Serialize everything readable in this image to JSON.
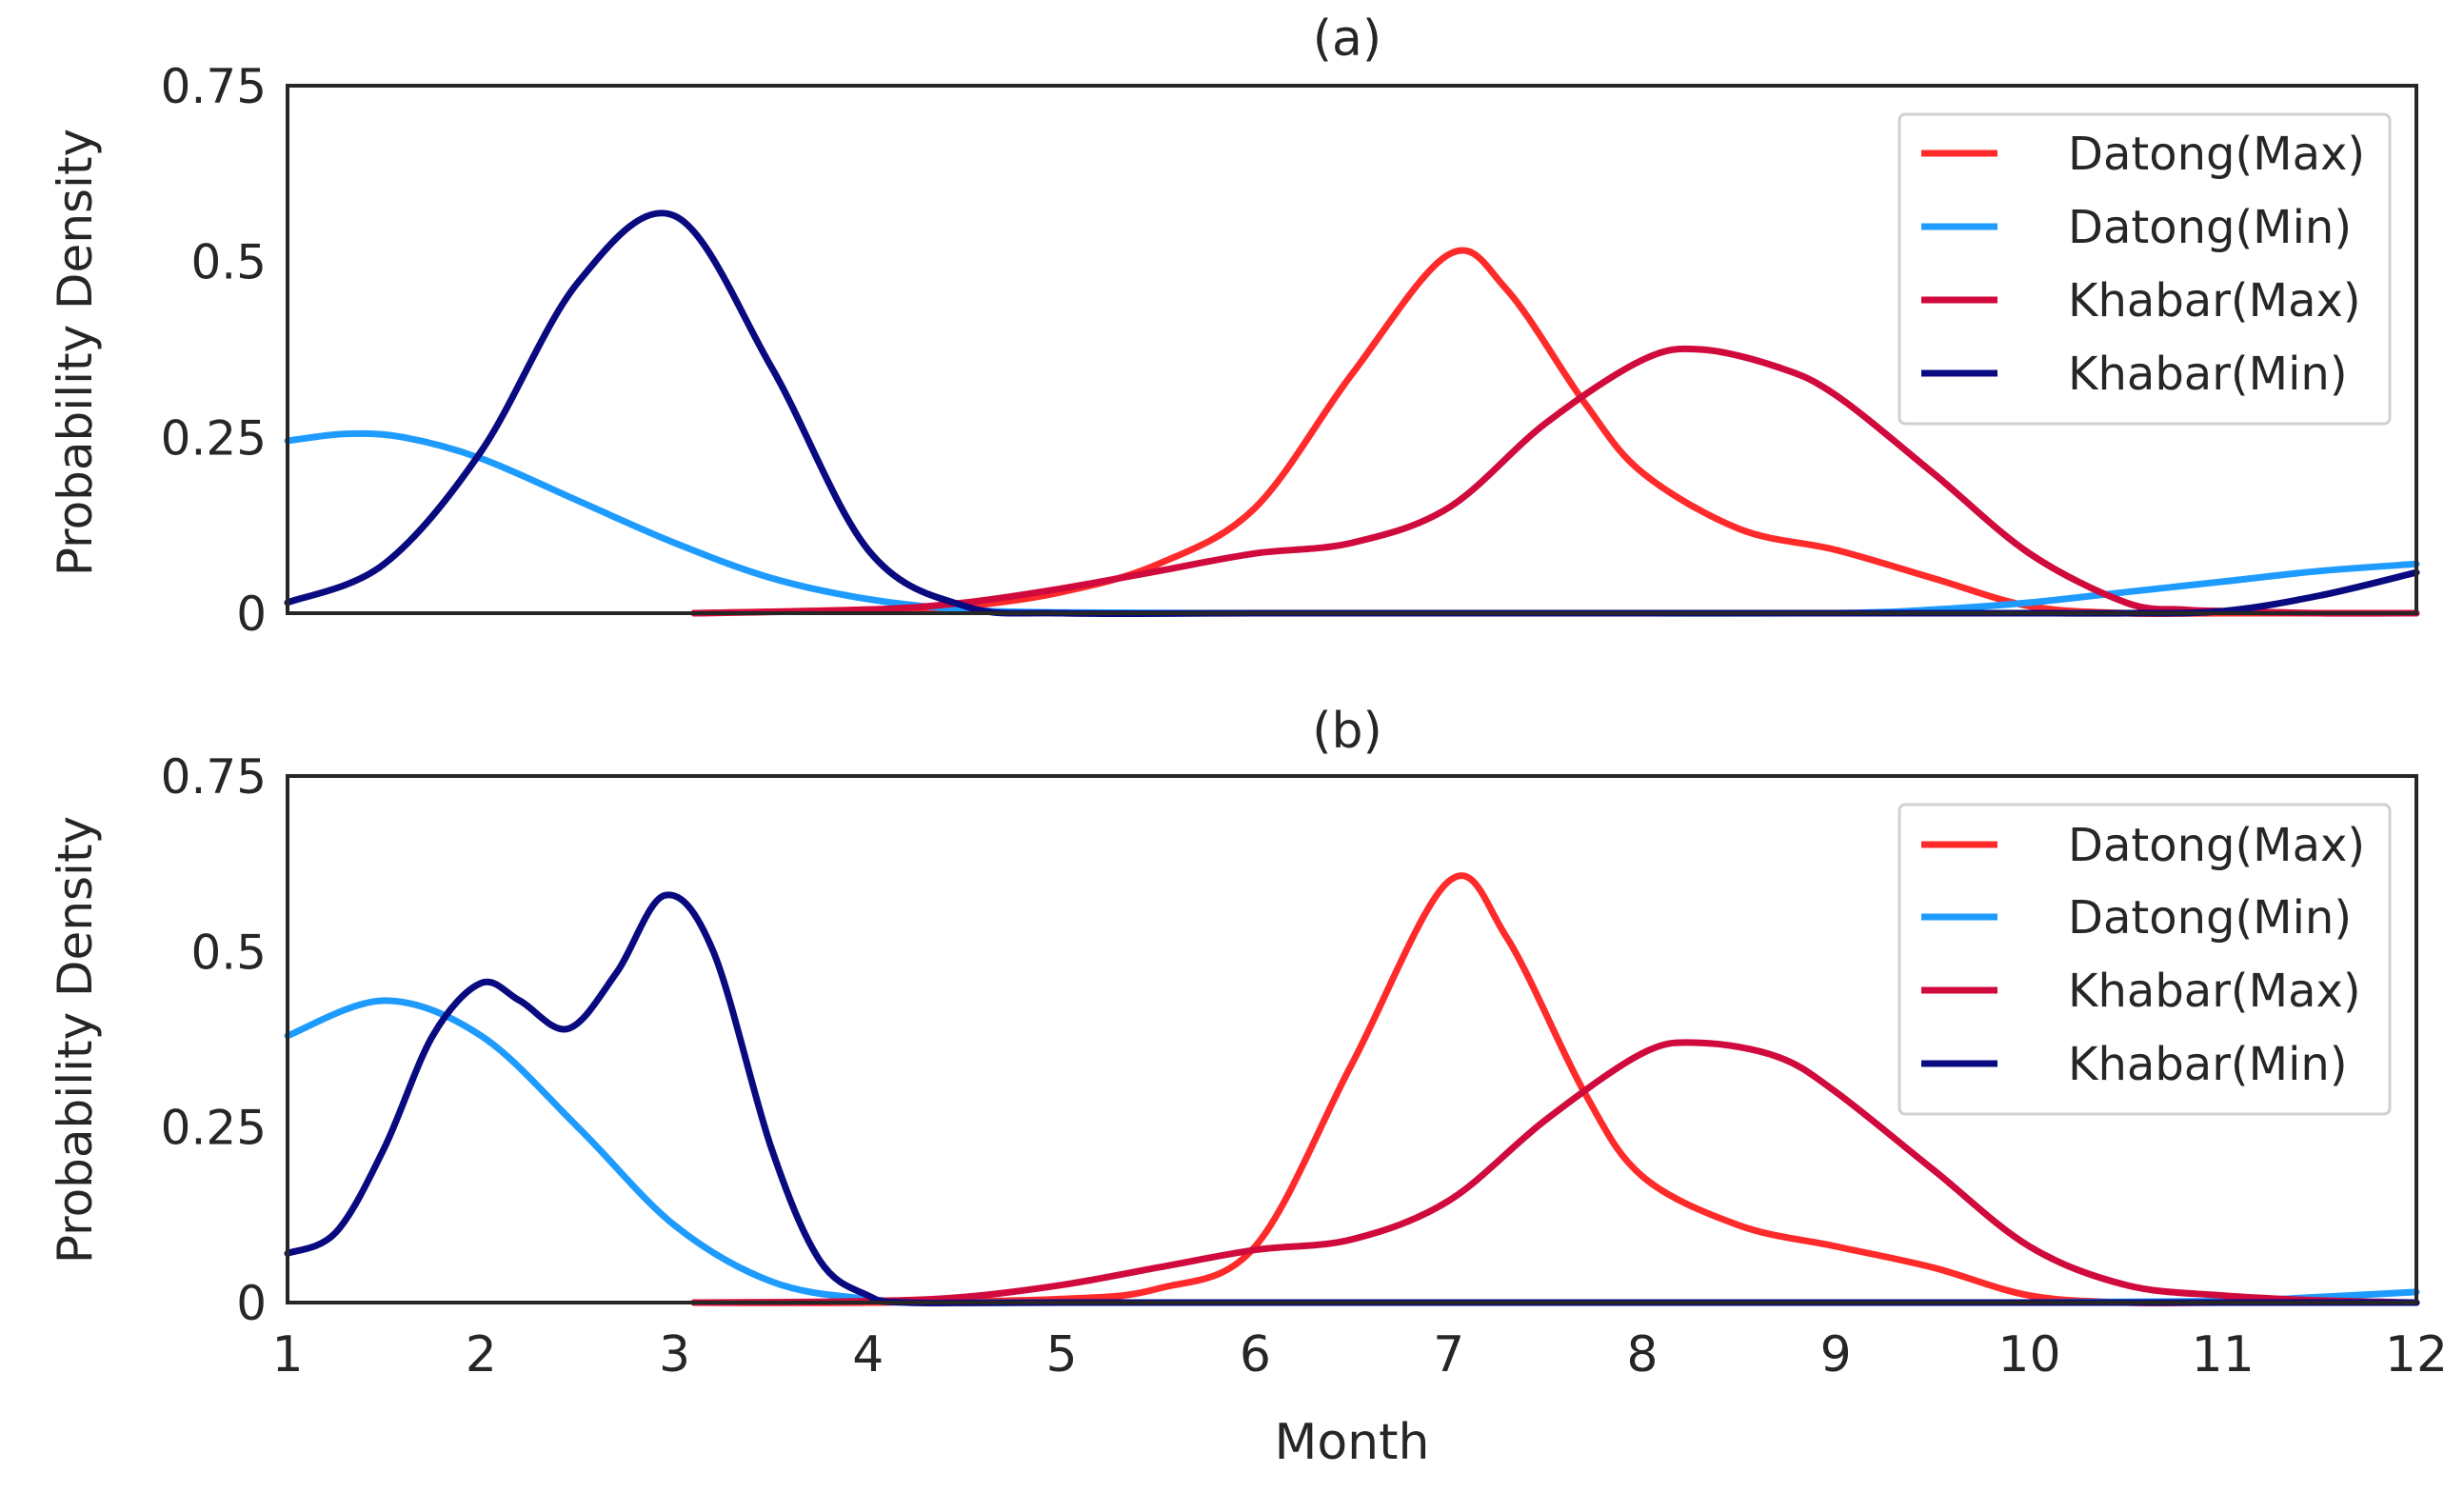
{
  "chart_data": [
    {
      "type": "line",
      "title": "(a)",
      "xlabel": "",
      "ylabel": "Probability Density",
      "xlim": [
        1,
        12
      ],
      "ylim": [
        0,
        0.75
      ],
      "yticks": [
        0,
        0.25,
        0.5,
        0.75
      ],
      "ytick_labels": [
        "0",
        "0.25",
        "0.5",
        "0.75"
      ],
      "grid": false,
      "legend_position": "top-right",
      "series": [
        {
          "name": "Datong(Max)",
          "color": "#ff2a2a",
          "x": [
            3.1,
            4.0,
            4.5,
            5.0,
            5.5,
            6.0,
            6.5,
            7.0,
            7.3,
            7.7,
            8.0,
            8.5,
            9.0,
            9.5,
            10.0,
            10.5,
            11.0,
            12.0
          ],
          "y": [
            0.0,
            0.005,
            0.01,
            0.03,
            0.07,
            0.15,
            0.34,
            0.51,
            0.46,
            0.3,
            0.2,
            0.12,
            0.09,
            0.05,
            0.01,
            0.0,
            0.0,
            0.0
          ]
        },
        {
          "name": "Datong(Min)",
          "color": "#1e9bff",
          "x": [
            1.0,
            1.3,
            1.6,
            2.0,
            2.5,
            3.0,
            3.5,
            4.0,
            4.5,
            5.0,
            6.0,
            7.0,
            8.0,
            9.0,
            9.5,
            10.0,
            10.5,
            11.0,
            11.5,
            12.0
          ],
          "y": [
            0.245,
            0.255,
            0.25,
            0.22,
            0.16,
            0.1,
            0.05,
            0.02,
            0.005,
            0.001,
            0.0,
            0.0,
            0.0,
            0.0,
            0.005,
            0.015,
            0.03,
            0.045,
            0.06,
            0.07
          ]
        },
        {
          "name": "Khabar(Max)",
          "color": "#d00a3c",
          "x": [
            3.1,
            4.0,
            4.5,
            5.0,
            5.5,
            6.0,
            6.5,
            7.0,
            7.5,
            8.0,
            8.3,
            8.7,
            9.0,
            9.5,
            10.0,
            10.5,
            10.8,
            11.0,
            11.5,
            12.0
          ],
          "y": [
            0.0,
            0.005,
            0.015,
            0.035,
            0.06,
            0.085,
            0.1,
            0.15,
            0.27,
            0.36,
            0.375,
            0.35,
            0.31,
            0.2,
            0.085,
            0.015,
            0.005,
            0.003,
            0.0,
            0.0
          ]
        },
        {
          "name": "Khabar(Min)",
          "color": "#0a0a80",
          "x": [
            1.0,
            1.5,
            2.0,
            2.5,
            3.0,
            3.5,
            4.0,
            4.5,
            5.0,
            6.0,
            7.0,
            8.0,
            9.0,
            10.0,
            10.5,
            11.0,
            11.5,
            12.0
          ],
          "y": [
            0.015,
            0.07,
            0.23,
            0.47,
            0.565,
            0.35,
            0.09,
            0.01,
            0.0,
            0.0,
            0.0,
            0.0,
            0.0,
            0.0,
            0.0,
            0.003,
            0.025,
            0.058
          ]
        }
      ]
    },
    {
      "type": "line",
      "title": "(b)",
      "xlabel": "Month",
      "ylabel": "Probability Density",
      "xlim": [
        1,
        12
      ],
      "ylim": [
        0,
        0.75
      ],
      "xticks": [
        1,
        2,
        3,
        4,
        5,
        6,
        7,
        8,
        9,
        10,
        11,
        12
      ],
      "xtick_labels": [
        "1",
        "2",
        "3",
        "4",
        "5",
        "6",
        "7",
        "8",
        "9",
        "10",
        "11",
        "12"
      ],
      "yticks": [
        0,
        0.25,
        0.5,
        0.75
      ],
      "ytick_labels": [
        "0",
        "0.25",
        "0.5",
        "0.75"
      ],
      "grid": false,
      "legend_position": "top-right",
      "series": [
        {
          "name": "Datong(Max)",
          "color": "#ff2a2a",
          "x": [
            3.1,
            4.0,
            5.0,
            5.5,
            6.0,
            6.5,
            7.0,
            7.3,
            7.7,
            8.0,
            8.5,
            9.0,
            9.5,
            10.0,
            10.5,
            11.0,
            12.0
          ],
          "y": [
            0.0,
            0.0,
            0.005,
            0.02,
            0.08,
            0.34,
            0.6,
            0.52,
            0.3,
            0.18,
            0.11,
            0.08,
            0.05,
            0.01,
            0.0,
            0.0,
            0.0
          ]
        },
        {
          "name": "Datong(Min)",
          "color": "#1e9bff",
          "x": [
            1.0,
            1.5,
            2.0,
            2.5,
            3.0,
            3.5,
            4.0,
            4.5,
            5.0,
            6.0,
            8.0,
            10.0,
            11.0,
            11.5,
            12.0
          ],
          "y": [
            0.38,
            0.43,
            0.38,
            0.25,
            0.11,
            0.03,
            0.005,
            0.0,
            0.0,
            0.0,
            0.0,
            0.0,
            0.002,
            0.008,
            0.015
          ]
        },
        {
          "name": "Khabar(Max)",
          "color": "#d00a3c",
          "x": [
            3.1,
            4.0,
            4.5,
            5.0,
            5.5,
            6.0,
            6.5,
            7.0,
            7.5,
            8.0,
            8.3,
            8.7,
            9.0,
            9.5,
            10.0,
            10.5,
            11.0,
            11.5,
            12.0
          ],
          "y": [
            0.0,
            0.002,
            0.008,
            0.025,
            0.05,
            0.075,
            0.09,
            0.145,
            0.26,
            0.355,
            0.37,
            0.35,
            0.3,
            0.19,
            0.08,
            0.025,
            0.01,
            0.003,
            0.0
          ]
        },
        {
          "name": "Khabar(Min)",
          "color": "#0a0a80",
          "x": [
            1.0,
            1.25,
            1.5,
            1.75,
            2.0,
            2.2,
            2.45,
            2.7,
            2.95,
            3.2,
            3.5,
            3.75,
            4.0,
            4.2,
            5.0,
            8.0,
            10.0,
            11.0,
            12.0
          ],
          "y": [
            0.07,
            0.1,
            0.22,
            0.38,
            0.455,
            0.43,
            0.39,
            0.47,
            0.58,
            0.5,
            0.22,
            0.06,
            0.01,
            0.0,
            0.0,
            0.0,
            0.0,
            0.0,
            0.0
          ]
        }
      ]
    }
  ]
}
